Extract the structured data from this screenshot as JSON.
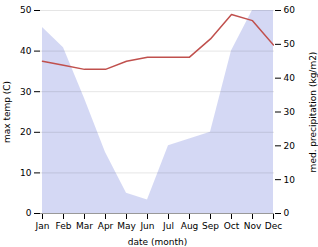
{
  "chart_data": {
    "type": "line",
    "categories": [
      "Jan",
      "Feb",
      "Mar",
      "Apr",
      "May",
      "Jun",
      "Jul",
      "Aug",
      "Sep",
      "Oct",
      "Nov",
      "Dec"
    ],
    "series": [
      {
        "type": "area",
        "axis": "y2",
        "color": "#c5cbf0",
        "values": [
          55,
          49,
          34,
          18,
          6,
          4,
          20,
          22,
          24,
          48,
          60,
          60
        ]
      },
      {
        "type": "line",
        "color": "#c0504d",
        "values": [
          37.5,
          36.5,
          35.5,
          35.5,
          37.5,
          38.5,
          38.5,
          38.5,
          43.0,
          49.0,
          47.5,
          41.5
        ]
      }
    ],
    "xlabel": "date (month)",
    "ylabel": "max temp (C)",
    "y2label": "med. precipitation (kg/m2)",
    "ylim": [
      0,
      50
    ],
    "yticks": [
      0,
      10,
      20,
      30,
      40,
      50
    ],
    "y2lim": [
      0,
      60
    ],
    "y2ticks": [
      0,
      10,
      20,
      30,
      40,
      50,
      60
    ],
    "grid": true
  }
}
